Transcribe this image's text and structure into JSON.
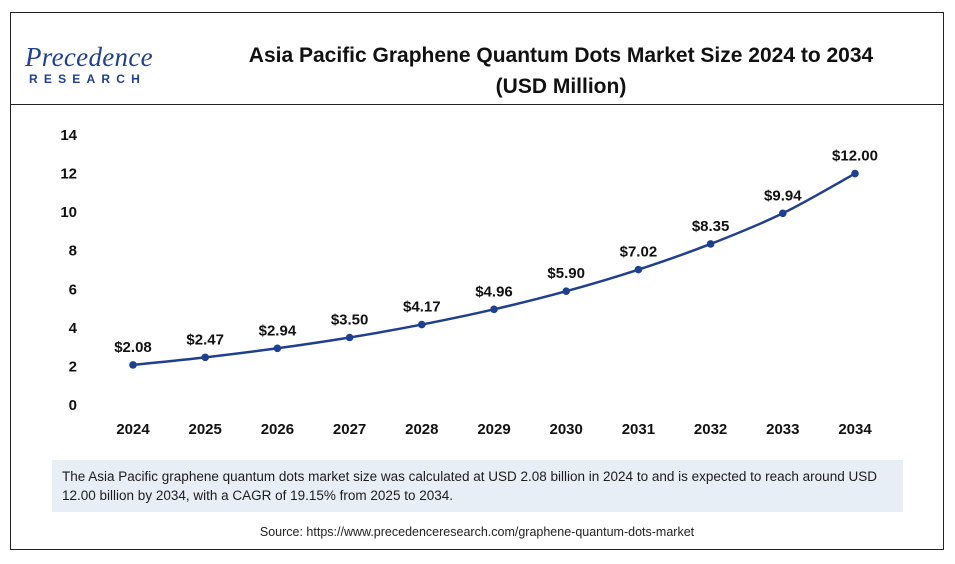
{
  "logo": {
    "word": "Precedence",
    "sub": "RESEARCH"
  },
  "title_line1": "Asia Pacific Graphene Quantum Dots Market Size 2024 to 2034",
  "title_line2": "(USD Million)",
  "note": "The Asia Pacific graphene quantum dots market size was calculated at USD 2.08 billion in 2024 to and is expected to reach around USD 12.00 billion by 2034, with a CAGR of 19.15% from 2025 to 2034.",
  "source": "Source: https://www.precedenceresearch.com/graphene-quantum-dots-market",
  "colors": {
    "line": "#1f3f8f",
    "brand": "#1f3f8f",
    "note_bg": "#e8eef6"
  },
  "chart_data": {
    "type": "line",
    "title": "Asia Pacific Graphene Quantum Dots Market Size 2024 to 2034 (USD Million)",
    "categories": [
      "2024",
      "2025",
      "2026",
      "2027",
      "2028",
      "2029",
      "2030",
      "2031",
      "2032",
      "2033",
      "2034"
    ],
    "series": [
      {
        "values": [
          2.08,
          2.47,
          2.94,
          3.5,
          4.17,
          4.96,
          5.9,
          7.02,
          8.35,
          9.94,
          12.0
        ]
      }
    ],
    "data_labels": [
      "$2.08",
      "$2.47",
      "$2.94",
      "$3.50",
      "$4.17",
      "$4.96",
      "$5.90",
      "$7.02",
      "$8.35",
      "$9.94",
      "$12.00"
    ],
    "yticks": [
      "0",
      "2",
      "4",
      "6",
      "8",
      "10",
      "12",
      "14"
    ],
    "ylim": [
      0,
      14
    ],
    "xlabel": "",
    "ylabel": "",
    "grid": false
  }
}
